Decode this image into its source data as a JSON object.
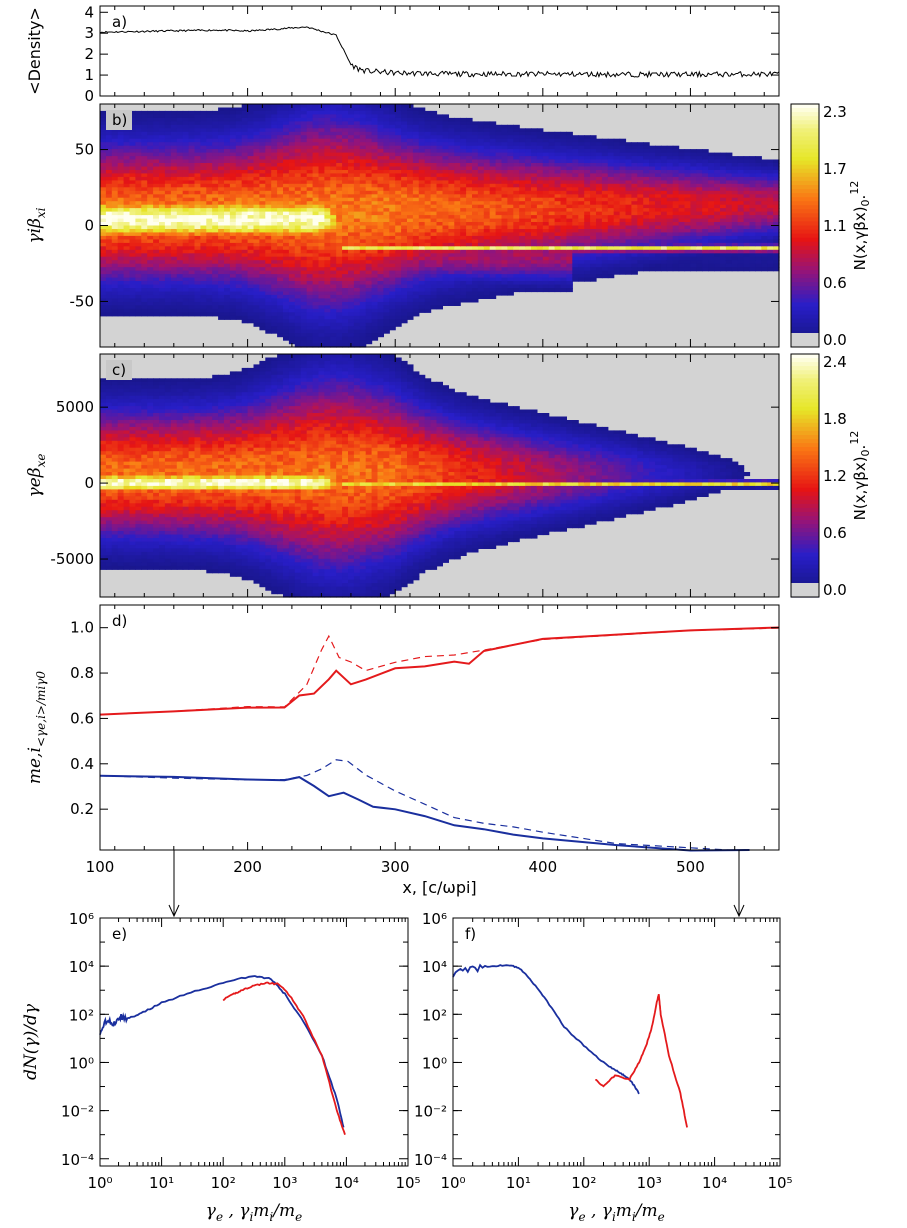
{
  "colors": {
    "ion": "#e41a1c",
    "electron": "#1a2f9e",
    "axis": "#000000",
    "empty": "#d3d3d3"
  },
  "chart_data": [
    {
      "panel": "a)",
      "type": "line",
      "ylabel": "<Density>",
      "xlim": [
        100,
        560
      ],
      "ylim": [
        0,
        4.3
      ],
      "yticks": [
        "0",
        "1",
        "2",
        "3",
        "4"
      ],
      "series": [
        {
          "x": [
            100,
            140,
            180,
            200,
            220,
            240,
            250,
            260,
            265,
            270,
            275,
            280,
            290,
            300,
            340,
            400,
            450,
            500,
            560
          ],
          "y": [
            3.05,
            3.1,
            3.15,
            3.1,
            3.2,
            3.3,
            3.1,
            2.9,
            2.2,
            1.5,
            1.3,
            1.2,
            1.15,
            1.1,
            1.05,
            1.05,
            1.03,
            1.03,
            1.05
          ]
        }
      ]
    },
    {
      "panel": "b)",
      "type": "heatmap",
      "ylabel": "γiβxi",
      "xlim": [
        100,
        560
      ],
      "ylim": [
        -80,
        80
      ],
      "yticks": [
        "-50",
        "0",
        "50"
      ],
      "colorbar_label": "N(x,γβx)0.12",
      "colorbar_ticks": [
        "0.0",
        "0.6",
        "1.1",
        "1.7",
        "2.3"
      ]
    },
    {
      "panel": "c)",
      "type": "heatmap",
      "ylabel": "γeβxe",
      "xlim": [
        100,
        560
      ],
      "ylim": [
        -7500,
        8500
      ],
      "yticks": [
        "-5000",
        "0",
        "5000"
      ],
      "colorbar_label": "N(x,γβx)0.12",
      "colorbar_ticks": [
        "0.0",
        "0.6",
        "1.2",
        "1.8",
        "2.4"
      ]
    },
    {
      "panel": "d)",
      "type": "line",
      "ylabel": "me,i<γe,i>/miγ0",
      "xlabel": "x, [c/ωpi]",
      "xlim": [
        100,
        560
      ],
      "ylim": [
        0.02,
        1.1
      ],
      "xticks": [
        "100",
        "200",
        "300",
        "400",
        "500"
      ],
      "yticks": [
        "0.2",
        "0.4",
        "0.6",
        "0.8",
        "1.0"
      ],
      "series": [
        {
          "color": "ion",
          "dash": false,
          "x": [
            100,
            150,
            200,
            225,
            235,
            245,
            255,
            260,
            270,
            280,
            300,
            320,
            340,
            350,
            360,
            400,
            450,
            500,
            560
          ],
          "y": [
            0.62,
            0.63,
            0.65,
            0.65,
            0.7,
            0.71,
            0.77,
            0.81,
            0.75,
            0.77,
            0.82,
            0.83,
            0.85,
            0.84,
            0.9,
            0.95,
            0.97,
            0.99,
            1.0
          ]
        },
        {
          "color": "ion",
          "dash": true,
          "x": [
            100,
            150,
            200,
            225,
            240,
            250,
            255,
            262,
            270,
            280,
            300,
            320,
            340,
            360,
            400,
            450,
            500,
            560
          ],
          "y": [
            0.62,
            0.63,
            0.65,
            0.65,
            0.75,
            0.9,
            0.96,
            0.87,
            0.85,
            0.81,
            0.85,
            0.87,
            0.88,
            0.9,
            0.95,
            0.97,
            0.99,
            1.0
          ]
        },
        {
          "color": "electron",
          "dash": false,
          "x": [
            100,
            150,
            200,
            225,
            235,
            245,
            255,
            265,
            275,
            285,
            300,
            320,
            340,
            360,
            380,
            400,
            450,
            500,
            530,
            540
          ],
          "y": [
            0.35,
            0.34,
            0.33,
            0.33,
            0.34,
            0.3,
            0.26,
            0.27,
            0.24,
            0.21,
            0.2,
            0.17,
            0.13,
            0.11,
            0.09,
            0.07,
            0.04,
            0.02,
            0.02,
            0.02
          ]
        },
        {
          "color": "electron",
          "dash": true,
          "x": [
            100,
            150,
            200,
            225,
            240,
            250,
            260,
            268,
            280,
            300,
            320,
            340,
            360,
            380,
            400,
            450,
            500,
            530,
            540
          ],
          "y": [
            0.35,
            0.34,
            0.33,
            0.33,
            0.35,
            0.38,
            0.42,
            0.41,
            0.35,
            0.28,
            0.22,
            0.16,
            0.14,
            0.12,
            0.1,
            0.05,
            0.03,
            0.02,
            0.02
          ]
        }
      ]
    },
    {
      "panel": "e)",
      "type": "line",
      "log_x": true,
      "log_y": true,
      "ylabel": "dN(γ)/dγ",
      "xlabel": "γe , γimi/me",
      "xlim": [
        1,
        100000
      ],
      "ylim": [
        5e-05,
        1000000
      ],
      "xticks": [
        "10⁰",
        "10¹",
        "10²",
        "10³",
        "10⁴",
        "10⁵"
      ],
      "yticks": [
        "10⁻⁴",
        "10⁻²",
        "10⁰",
        "10²",
        "10⁴",
        "10⁶"
      ],
      "series": [
        {
          "color": "electron",
          "x": [
            1,
            1.3,
            1.7,
            2.2,
            3,
            5,
            10,
            30,
            100,
            300,
            600,
            1000,
            2000,
            4000,
            7000,
            9000
          ],
          "y": [
            20,
            60,
            40,
            80,
            70,
            120,
            300,
            800,
            2000,
            4000,
            3000,
            700,
            50,
            2,
            0.03,
            0.002
          ]
        },
        {
          "color": "ion",
          "x": [
            100,
            150,
            200,
            300,
            500,
            800,
            1200,
            2000,
            4000,
            7000,
            9500
          ],
          "y": [
            400,
            700,
            1000,
            1500,
            2000,
            1800,
            600,
            80,
            2,
            0.01,
            0.001
          ]
        }
      ]
    },
    {
      "panel": "f)",
      "type": "line",
      "log_x": true,
      "log_y": true,
      "xlabel": "γe , γimi/me",
      "xlim": [
        1,
        100000
      ],
      "ylim": [
        5e-05,
        1000000
      ],
      "xticks": [
        "10⁰",
        "10¹",
        "10²",
        "10³",
        "10⁴",
        "10⁵"
      ],
      "yticks": [
        "10⁻⁴",
        "10⁻²",
        "10⁰",
        "10²",
        "10⁴",
        "10⁶"
      ],
      "series": [
        {
          "color": "electron",
          "x": [
            1,
            2,
            4,
            7,
            10,
            15,
            25,
            50,
            100,
            200,
            300,
            400,
            500,
            600,
            700
          ],
          "y": [
            5000,
            7000,
            10000,
            11000,
            9000,
            3000,
            500,
            30,
            5,
            1,
            0.5,
            0.3,
            0.2,
            0.1,
            0.05
          ]
        },
        {
          "color": "ion",
          "x": [
            150,
            200,
            300,
            500,
            700,
            900,
            1100,
            1300,
            1400,
            1500,
            2000,
            3000,
            3800
          ],
          "y": [
            0.2,
            0.1,
            0.3,
            0.2,
            1,
            5,
            30,
            300,
            700,
            100,
            2,
            0.05,
            0.002
          ]
        }
      ]
    }
  ]
}
